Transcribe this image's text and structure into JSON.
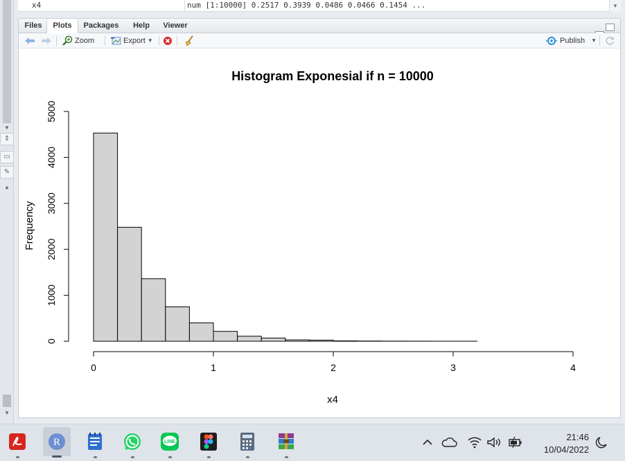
{
  "environment": {
    "var_name": "x4",
    "var_value": "num [1:10000] 0.2517 0.3939 0.0486 0.0466 0.1454 ..."
  },
  "tabs": [
    {
      "label": "Files"
    },
    {
      "label": "Plots"
    },
    {
      "label": "Packages"
    },
    {
      "label": "Help"
    },
    {
      "label": "Viewer"
    }
  ],
  "toolbar": {
    "zoom_label": "Zoom",
    "export_label": "Export",
    "publish_label": "Publish"
  },
  "chart_data": {
    "type": "bar",
    "title": "Histogram Exponesial if n = 10000",
    "xlabel": "x4",
    "ylabel": "Frequency",
    "xlim": [
      0,
      4
    ],
    "ylim": [
      0,
      5000
    ],
    "x_ticks": [
      "0",
      "1",
      "2",
      "3",
      "4"
    ],
    "y_ticks": [
      "0",
      "1000",
      "2000",
      "3000",
      "4000",
      "5000"
    ],
    "bin_edges": [
      0,
      0.2,
      0.4,
      0.6,
      0.8,
      1.0,
      1.2,
      1.4,
      1.6,
      1.8,
      2.0,
      2.2,
      2.4,
      2.6,
      2.8,
      3.0,
      3.2
    ],
    "values": [
      4530,
      2480,
      1360,
      750,
      400,
      215,
      110,
      70,
      30,
      25,
      8,
      5,
      3,
      2,
      1,
      1
    ],
    "bar_fill": "#d3d3d3",
    "bar_stroke": "#000000"
  },
  "taskbar": {
    "apps": [
      {
        "icon": "acrobat-icon",
        "color": "#d7261f"
      },
      {
        "icon": "r-icon",
        "color": "#6b8fd0",
        "active": true
      },
      {
        "icon": "notepad-icon",
        "color": "#2f6fd1"
      },
      {
        "icon": "whatsapp-icon",
        "color": "#25d366"
      },
      {
        "icon": "line-icon",
        "color": "#06c755"
      },
      {
        "icon": "figma-icon",
        "color": "#1e1e1e"
      },
      {
        "icon": "calculator-icon",
        "color": "#5b6b7b"
      },
      {
        "icon": "winrar-icon",
        "color": "#8b3a8f"
      }
    ],
    "time": "21:46",
    "date": "10/04/2022"
  }
}
